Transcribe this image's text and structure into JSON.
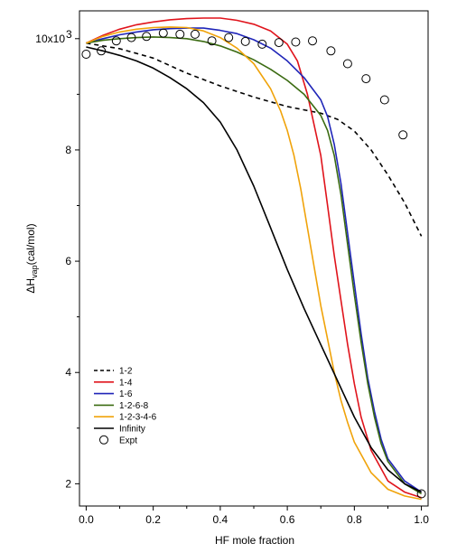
{
  "chart_data": {
    "type": "line",
    "title": "",
    "xlabel": "HF mole fraction",
    "ylabel_main": "ΔH",
    "ylabel_sub": "vap",
    "ylabel_suffix": "(cal/mol)",
    "xlim": [
      -0.02,
      1.02
    ],
    "ylim": [
      1.6,
      10.5
    ],
    "x_ticks": [
      0.0,
      0.2,
      0.4,
      0.6,
      0.8,
      1.0
    ],
    "x_tick_labels": [
      "0.0",
      "0.2",
      "0.4",
      "0.6",
      "0.8",
      "1.0"
    ],
    "y_ticks": [
      2,
      4,
      6,
      8,
      10
    ],
    "y_tick_labels": [
      "2",
      "4",
      "6",
      "8",
      "10x10"
    ],
    "y_top_exponent": "3",
    "grid": false,
    "legend_position": "bottom-left",
    "series": [
      {
        "name": "1-2",
        "color": "#000000",
        "dash": "dashed",
        "x": [
          0,
          0.1,
          0.2,
          0.3,
          0.4,
          0.5,
          0.6,
          0.65,
          0.7,
          0.75,
          0.8,
          0.85,
          0.9,
          0.95,
          1.0
        ],
        "y": [
          9.92,
          9.82,
          9.65,
          9.38,
          9.15,
          8.95,
          8.78,
          8.72,
          8.66,
          8.55,
          8.34,
          8.0,
          7.55,
          7.05,
          6.45
        ]
      },
      {
        "name": "1-4",
        "color": "#e0141c",
        "dash": "solid",
        "x": [
          0,
          0.05,
          0.1,
          0.15,
          0.2,
          0.25,
          0.3,
          0.35,
          0.4,
          0.45,
          0.5,
          0.55,
          0.6,
          0.63,
          0.66,
          0.7,
          0.72,
          0.74,
          0.76,
          0.78,
          0.8,
          0.82,
          0.85,
          0.9,
          0.95,
          1.0
        ],
        "y": [
          9.92,
          10.06,
          10.17,
          10.25,
          10.3,
          10.34,
          10.36,
          10.37,
          10.37,
          10.33,
          10.26,
          10.14,
          9.9,
          9.6,
          9.0,
          7.9,
          7.0,
          6.1,
          5.3,
          4.5,
          3.8,
          3.2,
          2.6,
          2.05,
          1.85,
          1.75
        ]
      },
      {
        "name": "1-6",
        "color": "#1f25b8",
        "dash": "solid",
        "x": [
          0,
          0.05,
          0.1,
          0.15,
          0.2,
          0.25,
          0.3,
          0.35,
          0.4,
          0.45,
          0.5,
          0.55,
          0.6,
          0.65,
          0.7,
          0.72,
          0.74,
          0.76,
          0.78,
          0.8,
          0.82,
          0.84,
          0.86,
          0.88,
          0.9,
          0.95,
          1.0
        ],
        "y": [
          9.92,
          10.0,
          10.07,
          10.12,
          10.16,
          10.18,
          10.19,
          10.19,
          10.15,
          10.09,
          9.98,
          9.83,
          9.6,
          9.3,
          8.9,
          8.6,
          8.1,
          7.4,
          6.5,
          5.6,
          4.7,
          3.9,
          3.3,
          2.8,
          2.45,
          2.05,
          1.85
        ]
      },
      {
        "name": "1-2-6-8",
        "color": "#3b6b12",
        "dash": "solid",
        "x": [
          0,
          0.05,
          0.1,
          0.15,
          0.2,
          0.25,
          0.3,
          0.35,
          0.4,
          0.45,
          0.5,
          0.55,
          0.6,
          0.65,
          0.7,
          0.72,
          0.74,
          0.76,
          0.78,
          0.8,
          0.82,
          0.84,
          0.86,
          0.88,
          0.9,
          0.95,
          1.0
        ],
        "y": [
          9.92,
          9.97,
          10.0,
          10.02,
          10.03,
          10.02,
          10.0,
          9.95,
          9.87,
          9.76,
          9.62,
          9.45,
          9.25,
          9.0,
          8.62,
          8.35,
          7.9,
          7.2,
          6.3,
          5.4,
          4.55,
          3.8,
          3.2,
          2.72,
          2.4,
          2.0,
          1.82
        ]
      },
      {
        "name": "1-2-3-4-6",
        "color": "#f0a30a",
        "dash": "solid",
        "x": [
          0,
          0.05,
          0.1,
          0.15,
          0.2,
          0.25,
          0.3,
          0.35,
          0.4,
          0.45,
          0.5,
          0.55,
          0.58,
          0.6,
          0.62,
          0.64,
          0.66,
          0.68,
          0.7,
          0.72,
          0.74,
          0.76,
          0.78,
          0.8,
          0.85,
          0.9,
          0.95,
          1.0
        ],
        "y": [
          9.92,
          10.04,
          10.12,
          10.17,
          10.2,
          10.21,
          10.2,
          10.14,
          10.02,
          9.83,
          9.55,
          9.1,
          8.7,
          8.35,
          7.9,
          7.3,
          6.6,
          5.9,
          5.2,
          4.6,
          4.0,
          3.5,
          3.1,
          2.75,
          2.2,
          1.9,
          1.78,
          1.72
        ]
      },
      {
        "name": "Infinity",
        "color": "#000000",
        "dash": "solid",
        "x": [
          0,
          0.05,
          0.1,
          0.15,
          0.2,
          0.25,
          0.3,
          0.35,
          0.4,
          0.45,
          0.5,
          0.55,
          0.6,
          0.65,
          0.7,
          0.75,
          0.8,
          0.85,
          0.9,
          0.95,
          1.0
        ],
        "y": [
          9.85,
          9.78,
          9.7,
          9.6,
          9.47,
          9.3,
          9.1,
          8.85,
          8.5,
          8.0,
          7.35,
          6.6,
          5.85,
          5.15,
          4.5,
          3.85,
          3.2,
          2.65,
          2.25,
          2.0,
          1.85
        ]
      }
    ],
    "scatter": {
      "name": "Expt",
      "color": "#000000",
      "marker": "open-circle",
      "x": [
        0.0,
        0.045,
        0.09,
        0.135,
        0.18,
        0.23,
        0.28,
        0.325,
        0.375,
        0.425,
        0.475,
        0.525,
        0.575,
        0.625,
        0.675,
        0.73,
        0.78,
        0.835,
        0.89,
        0.945,
        1.0
      ],
      "y": [
        9.72,
        9.78,
        9.96,
        10.02,
        10.04,
        10.1,
        10.08,
        10.08,
        9.96,
        10.02,
        9.95,
        9.9,
        9.93,
        9.94,
        9.96,
        9.78,
        9.55,
        9.28,
        8.9,
        8.27,
        1.82
      ]
    }
  }
}
